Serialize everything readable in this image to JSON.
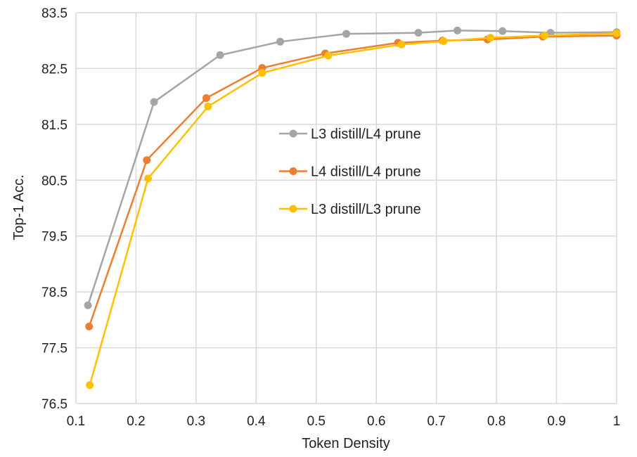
{
  "chart_data": {
    "type": "line",
    "title": "",
    "xlabel": "Token Density",
    "ylabel": "Top-1 Acc.",
    "xlim": [
      0.1,
      1
    ],
    "ylim": [
      76.5,
      83.5
    ],
    "xticks": [
      "0.1",
      "0.2",
      "0.3",
      "0.4",
      "0.5",
      "0.6",
      "0.7",
      "0.8",
      "0.9",
      "1"
    ],
    "yticks": [
      "76.5",
      "77.5",
      "78.5",
      "79.5",
      "80.5",
      "81.5",
      "82.5",
      "83.5"
    ],
    "grid": true,
    "legend_placement": "center",
    "series": [
      {
        "name": "L3 distill/L4 prune",
        "color": "#A5A5A5",
        "x": [
          0.12,
          0.23,
          0.34,
          0.44,
          0.55,
          0.67,
          0.735,
          0.81,
          0.89,
          1.0
        ],
        "y": [
          78.26,
          81.9,
          82.74,
          82.98,
          83.12,
          83.14,
          83.18,
          83.17,
          83.14,
          83.15
        ]
      },
      {
        "name": "L4 distill/L4 prune",
        "color": "#ED7D31",
        "x": [
          0.122,
          0.218,
          0.317,
          0.41,
          0.515,
          0.636,
          0.71,
          0.785,
          0.877,
          1.0
        ],
        "y": [
          77.88,
          80.86,
          81.97,
          82.51,
          82.77,
          82.96,
          83.0,
          83.02,
          83.07,
          83.09
        ]
      },
      {
        "name": "L3 distill/L3 prune",
        "color": "#FFC000",
        "x": [
          0.123,
          0.22,
          0.32,
          0.41,
          0.52,
          0.642,
          0.712,
          0.79,
          0.88,
          1.0
        ],
        "y": [
          76.83,
          80.53,
          81.82,
          82.42,
          82.73,
          82.93,
          82.99,
          83.05,
          83.09,
          83.13
        ]
      }
    ]
  }
}
